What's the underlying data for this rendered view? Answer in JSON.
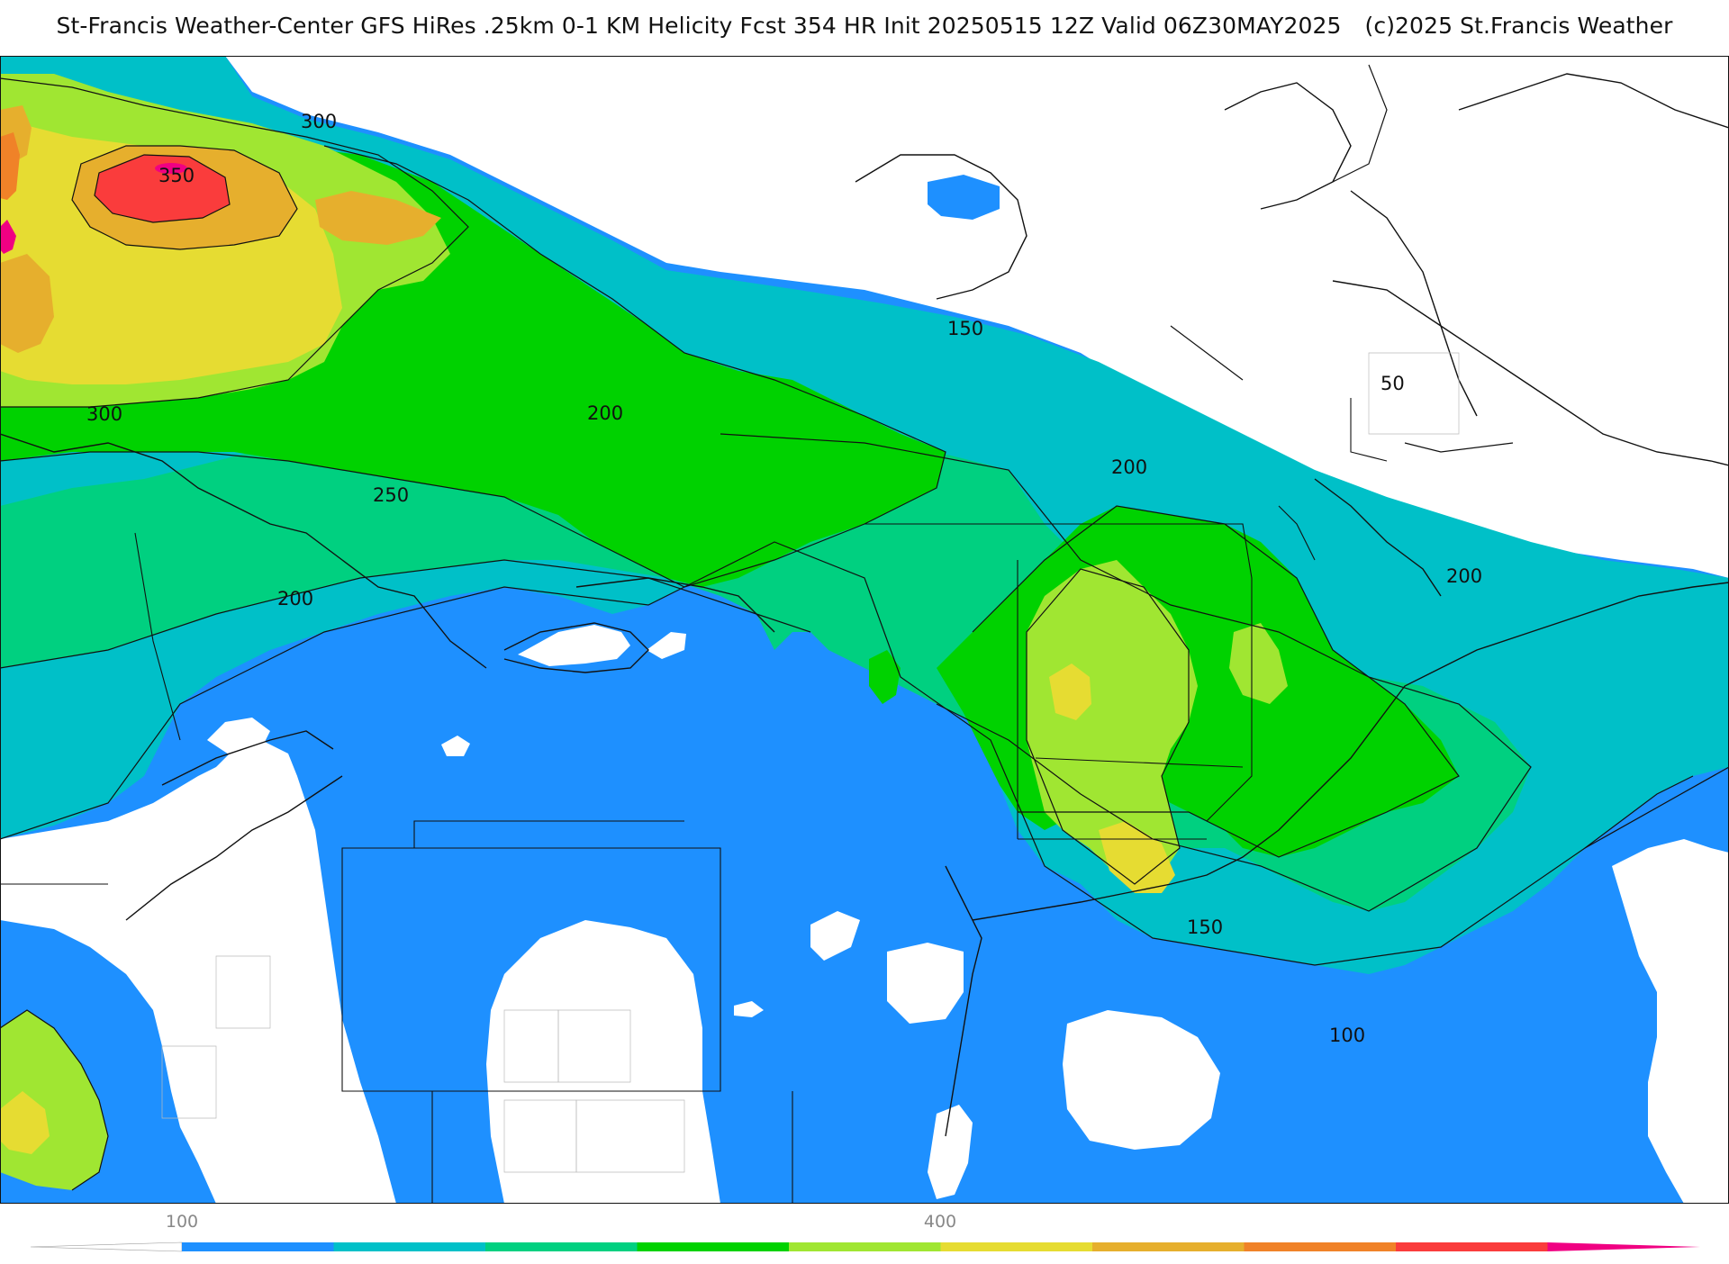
{
  "title": {
    "main": "St-Francis Weather-Center GFS HiRes .25km 0-1 KM Helicity Fcst 354 HR Init 20250515 12Z  Valid 06Z30MAY2025",
    "credit": "(c)2025 St.Francis Weather"
  },
  "map": {
    "contour_labels": [
      "350",
      "300",
      "150",
      "50",
      "300",
      "200",
      "250",
      "200",
      "200",
      "200",
      "150",
      "100"
    ]
  },
  "colorbar": {
    "tick_labels": [
      "100",
      "400"
    ],
    "colors": [
      "#ffffff",
      "#1e90ff",
      "#00c0c8",
      "#00d080",
      "#00d200",
      "#a0e632",
      "#e6dc32",
      "#e6af2d",
      "#f08228",
      "#fa3c3c",
      "#f00082"
    ]
  }
}
